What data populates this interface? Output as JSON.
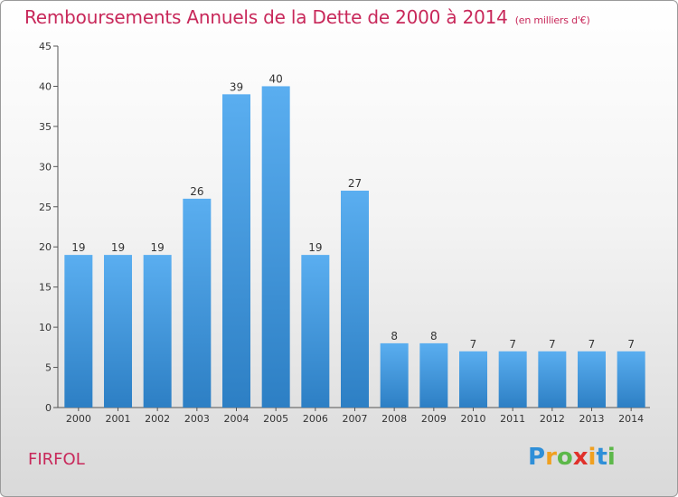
{
  "title": "Remboursements Annuels de la Dette de 2000 à 2014",
  "subtitle": "(en milliers d'€)",
  "commune": "FIRFOL",
  "logo": {
    "letters": [
      "P",
      "r",
      "o",
      "x",
      "i",
      "t",
      "i"
    ],
    "colors": [
      "#2f8fd8",
      "#f0a020",
      "#5db84a",
      "#e0302a",
      "#f0a020",
      "#2f8fd8",
      "#5db84a"
    ]
  },
  "colors": {
    "bar_top": "#5aaef0",
    "bar_bottom": "#2d7fc4",
    "text_accent": "#c8285a"
  },
  "chart_data": {
    "type": "bar",
    "title": "Remboursements Annuels de la Dette de 2000 à 2014",
    "subtitle": "(en milliers d'€)",
    "categories": [
      "2000",
      "2001",
      "2002",
      "2003",
      "2004",
      "2005",
      "2006",
      "2007",
      "2008",
      "2009",
      "2010",
      "2011",
      "2012",
      "2013",
      "2014"
    ],
    "values": [
      19,
      19,
      19,
      26,
      39,
      40,
      19,
      27,
      8,
      8,
      7,
      7,
      7,
      7,
      7
    ],
    "ylim": [
      0,
      45
    ],
    "yticks": [
      0,
      5,
      10,
      15,
      20,
      25,
      30,
      35,
      40,
      45
    ],
    "grid": false,
    "data_labels": true
  }
}
